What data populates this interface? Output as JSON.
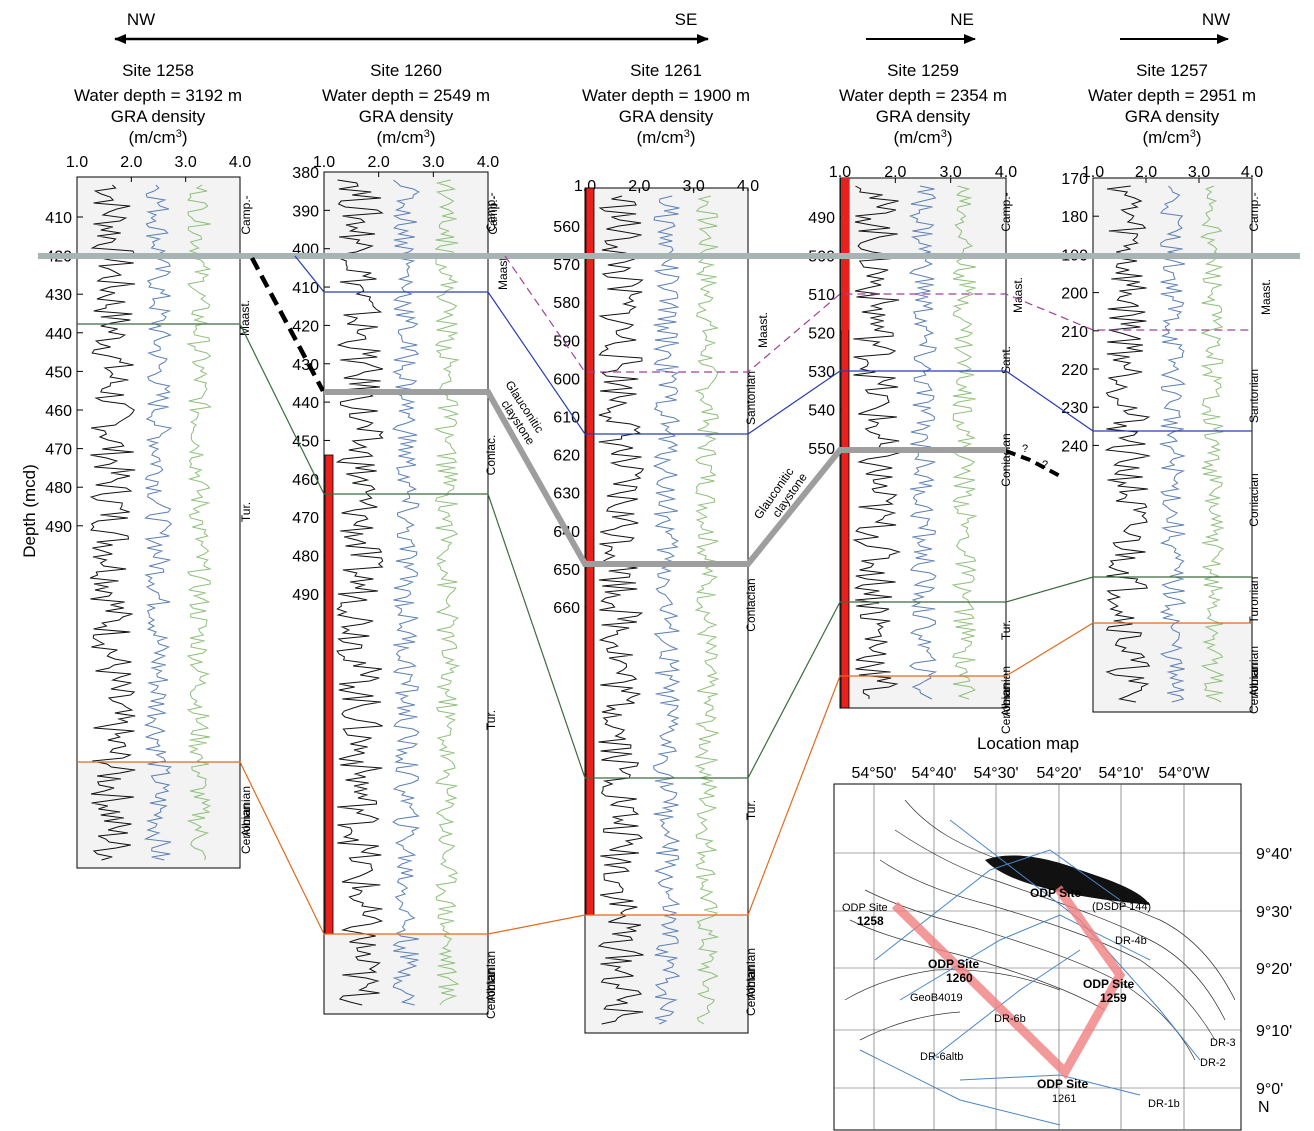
{
  "directions": [
    {
      "id": "nw1",
      "label": "NW"
    },
    {
      "id": "se",
      "label": "SE"
    },
    {
      "id": "ne",
      "label": "NE"
    },
    {
      "id": "nw2",
      "label": "NW"
    }
  ],
  "y_axis_label": "Depth (mcd)",
  "colors": {
    "red_bar": "#e8211c",
    "black_curve": "#111111",
    "blue_curve": "#5b7fb6",
    "green_curve": "#8fbf7a",
    "blue_line": "#2a3cb3",
    "green_line": "#3d6b3d",
    "orange_line": "#e06a20",
    "magenta_dash": "#a0409a",
    "gray_band": "#a8b4b4",
    "claystone": "#9e9e9e",
    "panel_fill": "#f3f3f3",
    "map_track": "#f08080"
  },
  "sites": [
    {
      "id": "s1258",
      "name": "Site 1258",
      "water_depth": "Water depth = 3192 m",
      "gra": "GRA density",
      "unit_prefix": "(m/cm",
      "unit_sup": "3",
      "unit_suffix": ")",
      "xticks": [
        "1.0",
        "2.0",
        "3.0",
        "4.0"
      ],
      "depth_ticks": [
        "410",
        "420",
        "430",
        "440",
        "450",
        "460",
        "470",
        "480",
        "490"
      ],
      "zones": [
        "Camp.-",
        "Maast.",
        "Tur.",
        "Cenomanian",
        "Albian"
      ]
    },
    {
      "id": "s1260",
      "name": "Site 1260",
      "water_depth": "Water depth = 2549 m",
      "gra": "GRA density",
      "unit_prefix": "(m/cm",
      "unit_sup": "3",
      "unit_suffix": ")",
      "xticks": [
        "1.0",
        "2.0",
        "3.0",
        "4.0"
      ],
      "depth_ticks": [
        "380",
        "390",
        "400",
        "410",
        "420",
        "430",
        "440",
        "450",
        "460",
        "470",
        "480",
        "490"
      ],
      "zones": [
        "Camp.-",
        "Maast.",
        "Coniac.",
        "Tur.",
        "Cenomanian",
        "Albian"
      ]
    },
    {
      "id": "s1261",
      "name": "Site 1261",
      "water_depth": "Water depth = 1900 m",
      "gra": "GRA density",
      "unit_prefix": "(m/cm",
      "unit_sup": "3",
      "unit_suffix": ")",
      "xticks": [
        "1.0",
        "2.0",
        "3.0",
        "4.0"
      ],
      "depth_ticks": [
        "560",
        "570",
        "580",
        "590",
        "600",
        "610",
        "620",
        "630",
        "640",
        "650",
        "660"
      ],
      "zones": [
        "Camp.-",
        "Maast.",
        "Santonian",
        "Coniacian",
        "Tur.",
        "Cenomanian",
        "Albian"
      ]
    },
    {
      "id": "s1259",
      "name": "Site 1259",
      "water_depth": "Water depth = 2354 m",
      "gra": "GRA density",
      "unit_prefix": "(m/cm",
      "unit_sup": "3",
      "unit_suffix": ")",
      "xticks": [
        "1.0",
        "2.0",
        "3.0",
        "4.0"
      ],
      "depth_ticks": [
        "490",
        "500",
        "510",
        "520",
        "530",
        "540",
        "550"
      ],
      "zones": [
        "Camp.-",
        "Maast.",
        "Sant.",
        "Coniacian",
        "Tur.",
        "Cenomanian",
        "Albian"
      ]
    },
    {
      "id": "s1257",
      "name": "Site 1257",
      "water_depth": "Water depth = 2951 m",
      "gra": "GRA density",
      "unit_prefix": "(m/cm",
      "unit_sup": "3",
      "unit_suffix": ")",
      "xticks": [
        "1.0",
        "2.0",
        "3.0",
        "4.0"
      ],
      "depth_ticks": [
        "170",
        "180",
        "190",
        "200",
        "210",
        "220",
        "230",
        "240"
      ],
      "zones": [
        "Camp.-",
        "Maast.",
        "Santonian",
        "Coniacian",
        "Turonian",
        "Cenomanian",
        "Albian"
      ]
    }
  ],
  "annotations": {
    "glauconitic_a": "Glauconitic",
    "glauconitic_b": "claystone",
    "question": "?"
  },
  "map": {
    "title": "Location map",
    "lon_labels": [
      "54°50'",
      "54°40'",
      "54°30'",
      "54°20'",
      "54°10'",
      "54°0'W"
    ],
    "lat_labels": [
      "9°40'",
      "9°30'",
      "9°20'",
      "9°10'",
      "9°0'"
    ],
    "north": "N",
    "labels": {
      "odp1258a": "ODP Site",
      "odp1258b": "1258",
      "odp1260a": "ODP Site",
      "odp1260b": "1260",
      "odp1259a": "ODP Site",
      "odp1259b": "1259",
      "odp1261a": "ODP Site",
      "odp1261b": "1261",
      "odp144a": "ODP Site",
      "odp144b": "(DSDP 144)",
      "geob": "GeoB4019",
      "dr6b": "DR-6b",
      "dr6alt": "DR-6altb",
      "dr4b": "DR-4b",
      "dr3": "DR-3",
      "dr2": "DR-2",
      "dr1b": "DR-1b"
    }
  }
}
